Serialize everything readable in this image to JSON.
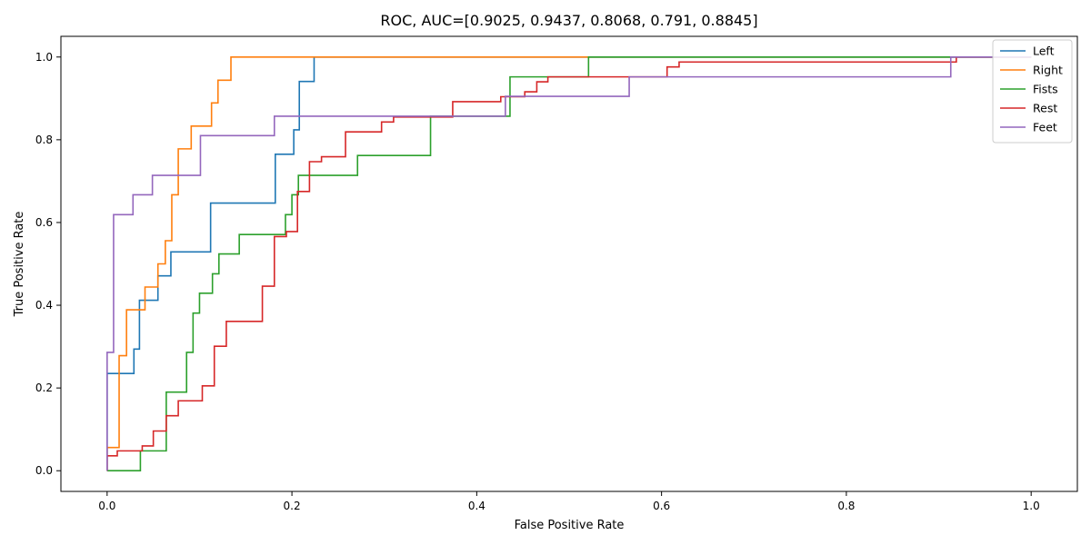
{
  "chart_data": {
    "type": "line",
    "title": "ROC, AUC=[0.9025, 0.9437, 0.8068, 0.791, 0.8845]",
    "xlabel": "False Positive Rate",
    "ylabel": "True Positive Rate",
    "xlim": [
      -0.05,
      1.05
    ],
    "ylim": [
      -0.05,
      1.05
    ],
    "xticks": [
      0.0,
      0.2,
      0.4,
      0.6,
      0.8,
      1.0
    ],
    "yticks": [
      0.0,
      0.2,
      0.4,
      0.6,
      0.8,
      1.0
    ],
    "grid": false,
    "legend_position": "top-right",
    "series": [
      {
        "name": "Left",
        "color": "#1f77b4",
        "points": [
          [
            0,
            0
          ],
          [
            0,
            0.235
          ],
          [
            0.029,
            0.235
          ],
          [
            0.029,
            0.294
          ],
          [
            0.035,
            0.294
          ],
          [
            0.035,
            0.412
          ],
          [
            0.055,
            0.412
          ],
          [
            0.055,
            0.471
          ],
          [
            0.069,
            0.471
          ],
          [
            0.069,
            0.529
          ],
          [
            0.112,
            0.529
          ],
          [
            0.112,
            0.647
          ],
          [
            0.182,
            0.647
          ],
          [
            0.182,
            0.765
          ],
          [
            0.202,
            0.765
          ],
          [
            0.202,
            0.824
          ],
          [
            0.208,
            0.824
          ],
          [
            0.208,
            0.941
          ],
          [
            0.224,
            0.941
          ],
          [
            0.224,
            1.0
          ],
          [
            1.0,
            1.0
          ]
        ]
      },
      {
        "name": "Right",
        "color": "#ff7f0e",
        "points": [
          [
            0,
            0
          ],
          [
            0,
            0.056
          ],
          [
            0.013,
            0.056
          ],
          [
            0.013,
            0.278
          ],
          [
            0.021,
            0.278
          ],
          [
            0.021,
            0.389
          ],
          [
            0.041,
            0.389
          ],
          [
            0.041,
            0.444
          ],
          [
            0.055,
            0.444
          ],
          [
            0.055,
            0.5
          ],
          [
            0.063,
            0.5
          ],
          [
            0.063,
            0.556
          ],
          [
            0.07,
            0.556
          ],
          [
            0.07,
            0.667
          ],
          [
            0.077,
            0.667
          ],
          [
            0.077,
            0.778
          ],
          [
            0.091,
            0.778
          ],
          [
            0.091,
            0.833
          ],
          [
            0.113,
            0.833
          ],
          [
            0.113,
            0.889
          ],
          [
            0.12,
            0.889
          ],
          [
            0.12,
            0.944
          ],
          [
            0.134,
            0.944
          ],
          [
            0.134,
            1.0
          ],
          [
            1.0,
            1.0
          ]
        ]
      },
      {
        "name": "Fists",
        "color": "#2ca02c",
        "points": [
          [
            0,
            0
          ],
          [
            0.036,
            0
          ],
          [
            0.036,
            0.048
          ],
          [
            0.064,
            0.048
          ],
          [
            0.064,
            0.19
          ],
          [
            0.086,
            0.19
          ],
          [
            0.086,
            0.286
          ],
          [
            0.093,
            0.286
          ],
          [
            0.093,
            0.381
          ],
          [
            0.1,
            0.381
          ],
          [
            0.1,
            0.429
          ],
          [
            0.114,
            0.429
          ],
          [
            0.114,
            0.476
          ],
          [
            0.121,
            0.476
          ],
          [
            0.121,
            0.524
          ],
          [
            0.143,
            0.524
          ],
          [
            0.143,
            0.571
          ],
          [
            0.193,
            0.571
          ],
          [
            0.193,
            0.619
          ],
          [
            0.2,
            0.619
          ],
          [
            0.2,
            0.667
          ],
          [
            0.207,
            0.667
          ],
          [
            0.207,
            0.714
          ],
          [
            0.271,
            0.714
          ],
          [
            0.271,
            0.762
          ],
          [
            0.35,
            0.762
          ],
          [
            0.35,
            0.857
          ],
          [
            0.436,
            0.857
          ],
          [
            0.436,
            0.952
          ],
          [
            0.521,
            0.952
          ],
          [
            0.521,
            1.0
          ],
          [
            1.0,
            1.0
          ]
        ]
      },
      {
        "name": "Rest",
        "color": "#d62728",
        "points": [
          [
            0,
            0
          ],
          [
            0,
            0.036
          ],
          [
            0.011,
            0.036
          ],
          [
            0.011,
            0.048
          ],
          [
            0.038,
            0.048
          ],
          [
            0.038,
            0.06
          ],
          [
            0.05,
            0.06
          ],
          [
            0.05,
            0.096
          ],
          [
            0.064,
            0.096
          ],
          [
            0.064,
            0.133
          ],
          [
            0.077,
            0.133
          ],
          [
            0.077,
            0.169
          ],
          [
            0.103,
            0.169
          ],
          [
            0.103,
            0.205
          ],
          [
            0.116,
            0.205
          ],
          [
            0.116,
            0.301
          ],
          [
            0.129,
            0.301
          ],
          [
            0.129,
            0.361
          ],
          [
            0.168,
            0.361
          ],
          [
            0.168,
            0.446
          ],
          [
            0.181,
            0.446
          ],
          [
            0.181,
            0.566
          ],
          [
            0.194,
            0.566
          ],
          [
            0.194,
            0.578
          ],
          [
            0.206,
            0.578
          ],
          [
            0.206,
            0.675
          ],
          [
            0.219,
            0.675
          ],
          [
            0.219,
            0.747
          ],
          [
            0.232,
            0.747
          ],
          [
            0.232,
            0.759
          ],
          [
            0.258,
            0.759
          ],
          [
            0.258,
            0.819
          ],
          [
            0.297,
            0.819
          ],
          [
            0.297,
            0.843
          ],
          [
            0.31,
            0.843
          ],
          [
            0.31,
            0.855
          ],
          [
            0.374,
            0.855
          ],
          [
            0.374,
            0.892
          ],
          [
            0.426,
            0.892
          ],
          [
            0.426,
            0.904
          ],
          [
            0.452,
            0.904
          ],
          [
            0.452,
            0.916
          ],
          [
            0.465,
            0.916
          ],
          [
            0.465,
            0.94
          ],
          [
            0.477,
            0.94
          ],
          [
            0.477,
            0.952
          ],
          [
            0.606,
            0.952
          ],
          [
            0.606,
            0.976
          ],
          [
            0.619,
            0.976
          ],
          [
            0.619,
            0.988
          ],
          [
            0.919,
            0.988
          ],
          [
            0.919,
            1.0
          ],
          [
            1.0,
            1.0
          ]
        ]
      },
      {
        "name": "Feet",
        "color": "#9467bd",
        "points": [
          [
            0,
            0
          ],
          [
            0,
            0.286
          ],
          [
            0.007,
            0.286
          ],
          [
            0.007,
            0.619
          ],
          [
            0.028,
            0.619
          ],
          [
            0.028,
            0.667
          ],
          [
            0.049,
            0.667
          ],
          [
            0.049,
            0.714
          ],
          [
            0.101,
            0.714
          ],
          [
            0.101,
            0.81
          ],
          [
            0.181,
            0.81
          ],
          [
            0.181,
            0.857
          ],
          [
            0.431,
            0.857
          ],
          [
            0.431,
            0.905
          ],
          [
            0.565,
            0.905
          ],
          [
            0.565,
            0.952
          ],
          [
            0.913,
            0.952
          ],
          [
            0.913,
            1.0
          ],
          [
            1.0,
            1.0
          ]
        ]
      }
    ]
  }
}
